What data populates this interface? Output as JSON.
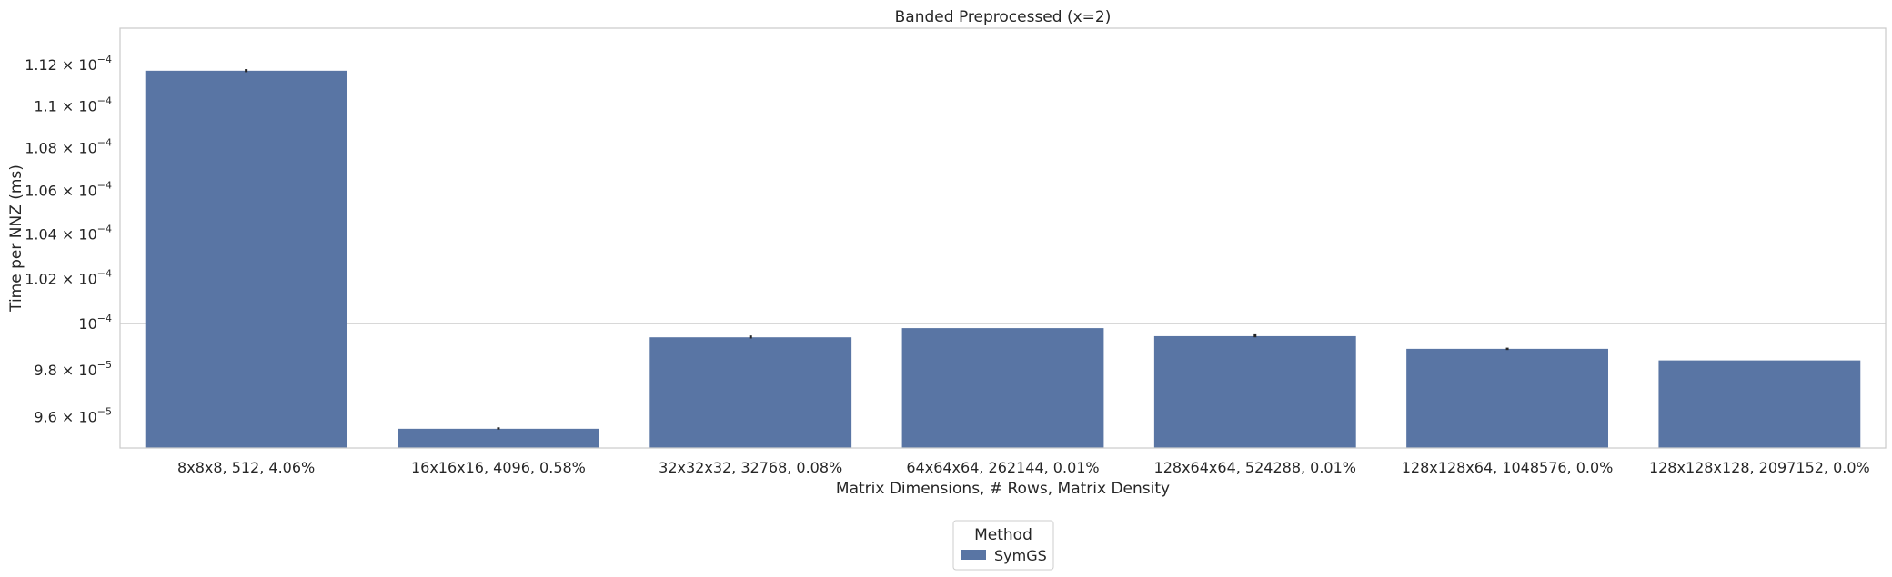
{
  "chart_data": {
    "type": "bar",
    "title": "Banded Preprocessed (x=2)",
    "xlabel": "Matrix Dimensions, # Rows, Matrix Density",
    "ylabel": "Time per NNZ (ms)",
    "y_scale": "log",
    "ylim": [
      9.47e-05,
      0.0001138
    ],
    "grid": "horizontal at 10^-4 only",
    "categories": [
      "8x8x8, 512, 4.06%",
      "16x16x16, 4096, 0.58%",
      "32x32x32, 32768, 0.08%",
      "64x64x64, 262144, 0.01%",
      "128x64x64, 524288, 0.01%",
      "128x128x64, 1048576, 0.0%",
      "128x128x128, 2097152, 0.0%"
    ],
    "series": [
      {
        "name": "SymGS",
        "color": "#5975a4",
        "values": [
          0.0001117,
          9.55e-05,
          9.94e-05,
          9.98e-05,
          9.945e-05,
          9.89e-05,
          9.84e-05
        ],
        "error_low": [
          0.00011163,
          9.547e-05,
          9.935e-05,
          null,
          9.94e-05,
          9.885e-05,
          null
        ],
        "error_high": [
          0.00011178,
          9.556e-05,
          9.948e-05,
          null,
          9.953e-05,
          9.895e-05,
          null
        ]
      }
    ],
    "y_ticks": [
      {
        "value": 9.6e-05,
        "mantissa": "9.6",
        "exp": "−5"
      },
      {
        "value": 9.8e-05,
        "mantissa": "9.8",
        "exp": "−5"
      },
      {
        "value": 0.0001,
        "mantissa": "",
        "exp": "−4"
      },
      {
        "value": 0.000102,
        "mantissa": "1.02",
        "exp": "−4"
      },
      {
        "value": 0.000104,
        "mantissa": "1.04",
        "exp": "−4"
      },
      {
        "value": 0.000106,
        "mantissa": "1.06",
        "exp": "−4"
      },
      {
        "value": 0.000108,
        "mantissa": "1.08",
        "exp": "−4"
      },
      {
        "value": 0.00011,
        "mantissa": "1.1",
        "exp": "−4"
      },
      {
        "value": 0.000112,
        "mantissa": "1.12",
        "exp": "−4"
      }
    ],
    "legend": {
      "title": "Method",
      "placement": "below plot, centered",
      "entries": [
        "SymGS"
      ]
    },
    "error_color": "#262626",
    "axes_color": "#cccccc"
  }
}
